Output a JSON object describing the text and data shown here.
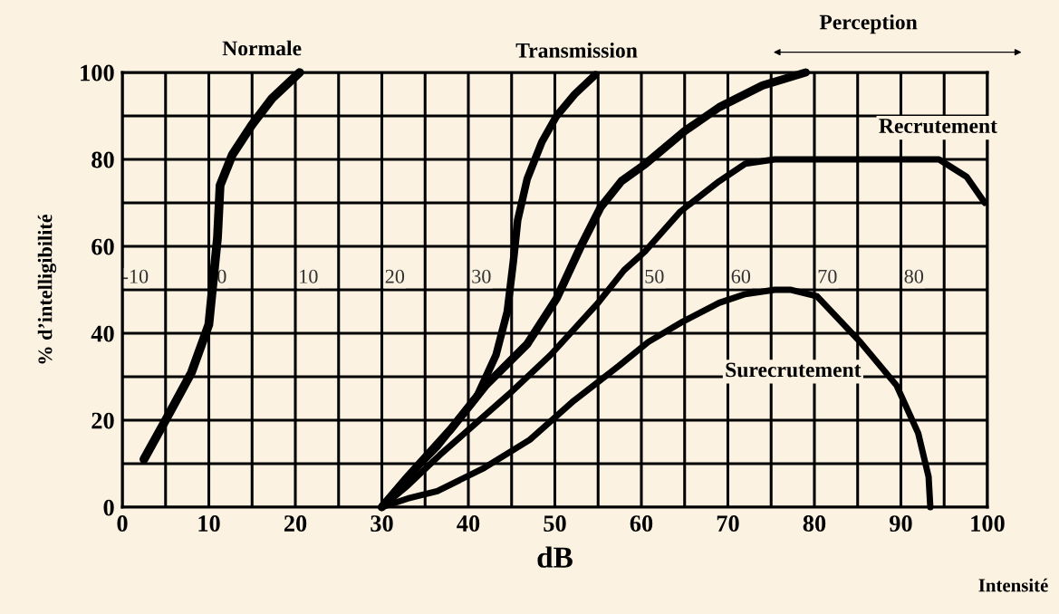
{
  "chart_data": {
    "type": "line",
    "xlabel": "dB",
    "ylabel": "% d’intelligibilité",
    "xlim": [
      0,
      100
    ],
    "ylim": [
      0,
      100
    ],
    "xticks": [
      0,
      {
        "value": 5,
        "label": null
      },
      10,
      {
        "value": 15,
        "label": null
      },
      20,
      {
        "value": 25,
        "label": null
      },
      30,
      {
        "value": 35,
        "label": null
      },
      40,
      {
        "value": 45,
        "label": null
      },
      50,
      {
        "value": 55,
        "label": null
      },
      60,
      {
        "value": 65,
        "label": null
      },
      70,
      {
        "value": 75,
        "label": null
      },
      80,
      {
        "value": 85,
        "label": null
      },
      90,
      {
        "value": 95,
        "label": null
      },
      100
    ],
    "yticks": [
      0,
      {
        "value": 10,
        "label": null
      },
      20,
      {
        "value": 30,
        "label": null
      },
      40,
      {
        "value": 50,
        "label": null
      },
      60,
      {
        "value": 70,
        "label": null
      },
      80,
      {
        "value": 90,
        "label": null
      },
      100
    ],
    "x2lim": [
      -11.5,
      88.5
    ],
    "x2ticks": [
      -10,
      0,
      10,
      20,
      30,
      50,
      60,
      70,
      80
    ],
    "grid": true,
    "marker": "none",
    "line_style": "solid",
    "series": [
      {
        "name": "Normale",
        "color": "#000000",
        "x": [
          2.5,
          5,
          8,
          10,
          10.5,
          11,
          11.3,
          12.7,
          15,
          17.3,
          20.5
        ],
        "values": [
          11,
          20,
          31,
          42,
          52,
          62,
          74,
          81,
          88,
          94,
          100
        ]
      },
      {
        "name": "Transmission",
        "color": "#000000",
        "x": [
          30,
          33,
          36.4,
          41,
          43.2,
          44.5,
          45.2,
          45.7,
          46.8,
          48.5,
          50.2,
          52.3,
          54.7
        ],
        "values": [
          0,
          7,
          14,
          25.5,
          35,
          45,
          56.5,
          66,
          75.5,
          84,
          90,
          95,
          99.5
        ]
      },
      {
        "color": "#000000",
        "x": [
          30,
          33,
          38,
          42,
          46.8,
          50.2,
          53,
          55.3,
          57.7,
          60.5,
          65,
          69,
          74,
          79
        ],
        "values": [
          0,
          7,
          18,
          28,
          37.5,
          48,
          60,
          69,
          75,
          79,
          86.5,
          92,
          97,
          100
        ]
      },
      {
        "name": "Recrutement",
        "color": "#000000",
        "x": [
          30,
          33,
          36.7,
          44.7,
          49.5,
          55,
          58,
          60.5,
          64.5,
          69,
          72,
          75.4,
          85,
          94.4,
          97.6,
          99.7
        ],
        "values": [
          0,
          5,
          12,
          26,
          35,
          47,
          54.5,
          59,
          68,
          75,
          79,
          80,
          80,
          80,
          76,
          70
        ]
      },
      {
        "name": "Surecrutement",
        "color": "#000000",
        "x": [
          30,
          33,
          36.4,
          41.8,
          47.1,
          52.2,
          57.4,
          60.8,
          64.8,
          69,
          72,
          75.4,
          77.3,
          80.3,
          85.3,
          89.5,
          92,
          93.2,
          93.4
        ],
        "values": [
          0,
          2,
          3.7,
          9,
          15.5,
          24.5,
          32.5,
          38,
          42.7,
          47,
          49,
          50,
          50,
          48.5,
          38,
          28,
          17,
          7,
          0
        ]
      }
    ],
    "annotations": [
      "Perception",
      "Intensité"
    ]
  }
}
